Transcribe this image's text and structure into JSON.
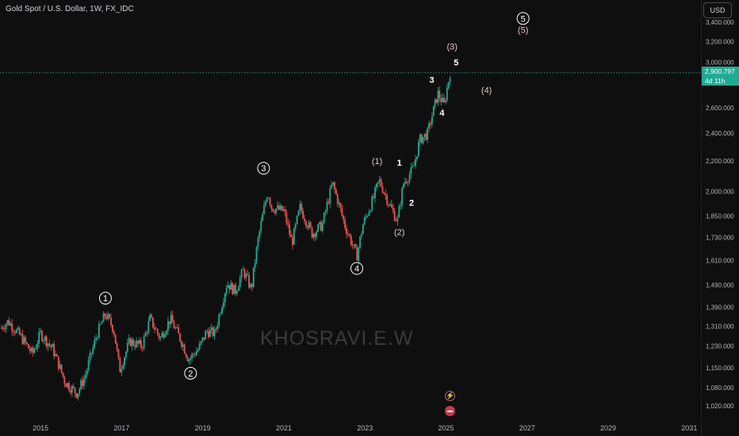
{
  "header": {
    "title": "Gold Spot / U.S. Dollar, 1W, FX_IDC",
    "currency": "USD"
  },
  "last_price": {
    "value": "2,900.797",
    "countdown": "4d 11h",
    "color": "#22ab94"
  },
  "watermark": "KHOSRAVI.E.W",
  "icons": [
    "flash-icon",
    "flag-icon"
  ],
  "colors": {
    "up": "#22ab94",
    "down": "#ef5350",
    "background": "#0f0f0f",
    "price_line": "#22ab94"
  },
  "chart_data": {
    "type": "candlestick",
    "title": "Gold Spot / U.S. Dollar, 1W, FX_IDC",
    "x_ticks": [
      "2015",
      "2017",
      "2019",
      "2021",
      "2023",
      "2025",
      "2027",
      "2029",
      "2031"
    ],
    "y_ticks": [
      "1,020.000",
      "1,080.000",
      "1,150.000",
      "1,230.000",
      "1,310.000",
      "1,390.000",
      "1,490.000",
      "1,610.000",
      "1,730.000",
      "1,850.000",
      "2,000.000",
      "2,200.000",
      "2,400.000",
      "2,600.000",
      "3,000.000",
      "3,200.000",
      "3,400.000"
    ],
    "y_scale": "log",
    "ylim": [
      985,
      3550
    ],
    "grid": false,
    "price_path": [
      [
        2014.0,
        1300
      ],
      [
        2014.2,
        1330
      ],
      [
        2014.5,
        1270
      ],
      [
        2014.8,
        1200
      ],
      [
        2015.0,
        1280
      ],
      [
        2015.3,
        1220
      ],
      [
        2015.6,
        1100
      ],
      [
        2015.9,
        1060
      ],
      [
        2016.1,
        1120
      ],
      [
        2016.4,
        1280
      ],
      [
        2016.6,
        1360
      ],
      [
        2016.8,
        1300
      ],
      [
        2016.95,
        1140
      ],
      [
        2017.2,
        1250
      ],
      [
        2017.5,
        1230
      ],
      [
        2017.7,
        1340
      ],
      [
        2017.95,
        1260
      ],
      [
        2018.2,
        1340
      ],
      [
        2018.5,
        1240
      ],
      [
        2018.65,
        1180
      ],
      [
        2018.9,
        1220
      ],
      [
        2019.1,
        1290
      ],
      [
        2019.3,
        1280
      ],
      [
        2019.6,
        1500
      ],
      [
        2019.8,
        1460
      ],
      [
        2020.0,
        1560
      ],
      [
        2020.2,
        1470
      ],
      [
        2020.35,
        1700
      ],
      [
        2020.6,
        2000
      ],
      [
        2020.7,
        1900
      ],
      [
        2021.0,
        1880
      ],
      [
        2021.2,
        1700
      ],
      [
        2021.4,
        1900
      ],
      [
        2021.7,
        1750
      ],
      [
        2021.95,
        1800
      ],
      [
        2022.2,
        2050
      ],
      [
        2022.5,
        1800
      ],
      [
        2022.8,
        1630
      ],
      [
        2022.95,
        1800
      ],
      [
        2023.2,
        1950
      ],
      [
        2023.35,
        2070
      ],
      [
        2023.6,
        1920
      ],
      [
        2023.8,
        1820
      ],
      [
        2023.95,
        2050
      ],
      [
        2024.2,
        2150
      ],
      [
        2024.35,
        2350
      ],
      [
        2024.55,
        2400
      ],
      [
        2024.8,
        2720
      ],
      [
        2024.95,
        2620
      ],
      [
        2025.1,
        2901
      ]
    ],
    "wave_labels": [
      {
        "text": "1",
        "x": 2016.6,
        "y": 1430,
        "circled": true,
        "color": "#ffffff"
      },
      {
        "text": "2",
        "x": 2018.7,
        "y": 1130,
        "circled": true,
        "color": "#ffffff"
      },
      {
        "text": "3",
        "x": 2020.5,
        "y": 2150,
        "circled": true,
        "color": "#ffffff"
      },
      {
        "text": "4",
        "x": 2022.8,
        "y": 1570,
        "circled": true,
        "color": "#ffffff"
      },
      {
        "text": "5",
        "x": 2026.9,
        "y": 3440,
        "circled": true,
        "color": "#ffffff"
      },
      {
        "text": "(1)",
        "x": 2023.3,
        "y": 2200,
        "circled": false,
        "color": "#e6c5c5"
      },
      {
        "text": "(2)",
        "x": 2023.85,
        "y": 1760,
        "circled": false,
        "color": "#e6c5c5"
      },
      {
        "text": "(3)",
        "x": 2025.15,
        "y": 3150,
        "circled": false,
        "color": "#e6c5c5"
      },
      {
        "text": "(4)",
        "x": 2026.0,
        "y": 2750,
        "circled": false,
        "color": "#e6c5c5"
      },
      {
        "text": "(5)",
        "x": 2026.9,
        "y": 3320,
        "circled": false,
        "color": "#e6c5c5"
      },
      {
        "text": "1",
        "x": 2023.85,
        "y": 2190,
        "circled": false,
        "color": "#ffffff"
      },
      {
        "text": "2",
        "x": 2024.15,
        "y": 1930,
        "circled": false,
        "color": "#ffffff"
      },
      {
        "text": "3",
        "x": 2024.65,
        "y": 2840,
        "circled": false,
        "color": "#ffffff"
      },
      {
        "text": "4",
        "x": 2024.9,
        "y": 2560,
        "circled": false,
        "color": "#ffffff"
      },
      {
        "text": "5",
        "x": 2025.25,
        "y": 3000,
        "circled": false,
        "color": "#ffffff"
      }
    ],
    "last_price": 2900.797
  }
}
